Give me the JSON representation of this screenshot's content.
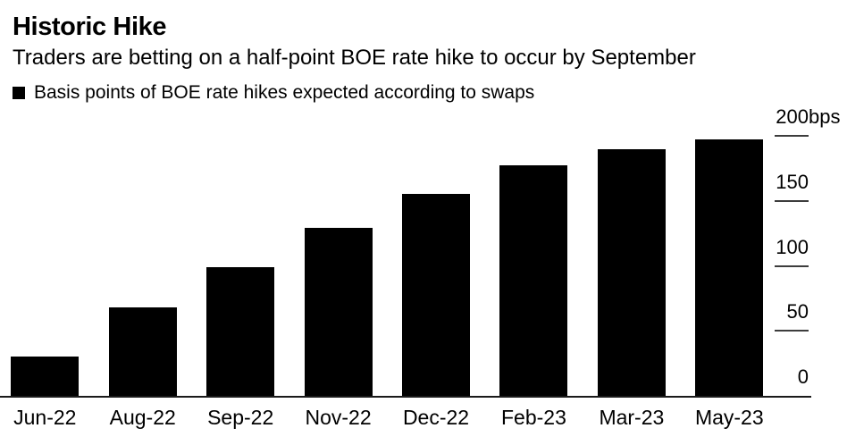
{
  "header": {
    "title": "Historic Hike",
    "subtitle": "Traders are betting on a half-point BOE rate hike to occur by September"
  },
  "legend": {
    "swatch_icon": "black-square-icon",
    "swatch_color": "#000000",
    "label": "Basis points of BOE rate hikes expected according to swaps"
  },
  "chart_data": {
    "type": "bar",
    "title": "Historic Hike",
    "subtitle": "Traders are betting on a half-point BOE rate hike to occur by September",
    "series": [
      {
        "name": "Basis points of BOE rate hikes expected according to swaps",
        "values": [
          30,
          68,
          99,
          129,
          155,
          177,
          190,
          197
        ]
      }
    ],
    "categories": [
      "Jun-22",
      "Aug-22",
      "Sep-22",
      "Nov-22",
      "Dec-22",
      "Feb-23",
      "Mar-23",
      "May-23"
    ],
    "unit": "bps",
    "xlabel": "",
    "ylabel": "",
    "ylim": [
      0,
      200
    ],
    "yticks": [
      {
        "value": 200,
        "label": "200",
        "suffix": "bps"
      },
      {
        "value": 150,
        "label": "150",
        "suffix": ""
      },
      {
        "value": 100,
        "label": "100",
        "suffix": ""
      },
      {
        "value": 50,
        "label": "50",
        "suffix": ""
      },
      {
        "value": 0,
        "label": "0",
        "suffix": ""
      }
    ],
    "y_axis_side": "right",
    "grid": false,
    "legend_position": "top-left",
    "bar_color": "#000000",
    "axis_color": "#1a1a1a",
    "tick_color": "#3d3d3d",
    "text_color": "#000000",
    "background_color": "#ffffff"
  }
}
